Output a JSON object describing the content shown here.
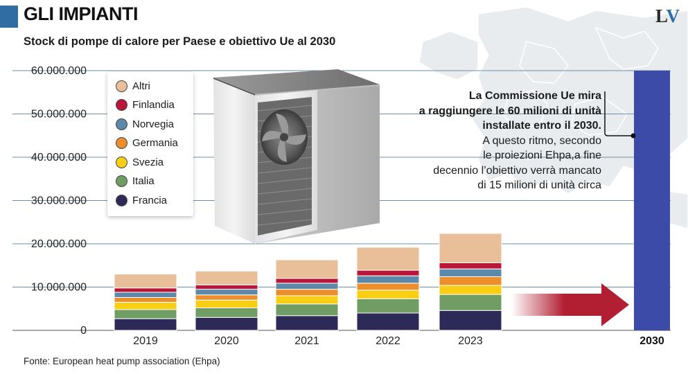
{
  "header": {
    "title": "GLI IMPIANTI",
    "subtitle": "Stock di pompe di calore per Paese e obiettivo Ue al 2030",
    "logo": "LV",
    "accent_color": "#2f6da3",
    "logo_colors": {
      "l": "#2b2b2b",
      "v": "#2f6da3"
    }
  },
  "source": "Fonte: European heat pump association (Ehpa)",
  "annotation": {
    "bold_lines": [
      "La Commissione Ue mira",
      "a raggiungere le 60 milioni di unità",
      "installate entro il 2030."
    ],
    "normal_lines": [
      "A questo ritmo, secondo",
      "le proiezioni Ehpa,a fine",
      "decennio l’obiettivo verrà mancato",
      "di 15 milioni di unità circa"
    ]
  },
  "illustration": {
    "icon": "heat-pump-unit-icon"
  },
  "chart_data": {
    "type": "bar",
    "stacked": true,
    "title": "Stock di pompe di calore per Paese e obiettivo Ue al 2030",
    "categories": [
      "2019",
      "2020",
      "2021",
      "2022",
      "2023"
    ],
    "series": [
      {
        "name": "Francia",
        "color": "#2d2a57",
        "values": [
          2700000,
          3000000,
          3400000,
          4000000,
          4600000
        ]
      },
      {
        "name": "Italia",
        "color": "#6f9d63",
        "values": [
          2100000,
          2200000,
          2700000,
          3300000,
          3700000
        ]
      },
      {
        "name": "Svezia",
        "color": "#f8cf14",
        "values": [
          1700000,
          1800000,
          1900000,
          2000000,
          2100000
        ]
      },
      {
        "name": "Germania",
        "color": "#ec8e2c",
        "values": [
          1100000,
          1200000,
          1500000,
          1600000,
          2000000
        ]
      },
      {
        "name": "Norvegia",
        "color": "#5c88a9",
        "values": [
          1200000,
          1300000,
          1400000,
          1700000,
          1800000
        ]
      },
      {
        "name": "Finlandia",
        "color": "#b8173a",
        "values": [
          1000000,
          1000000,
          1100000,
          1300000,
          1400000
        ]
      },
      {
        "name": "Altri",
        "color": "#e8bf98",
        "values": [
          3200000,
          3200000,
          4300000,
          5300000,
          6800000
        ]
      }
    ],
    "target": {
      "category": "2030",
      "value": 60000000,
      "color": "#3d4ba8"
    },
    "yticks": [
      "0",
      "10.000.000",
      "20.000.000",
      "30.000.000",
      "40.000.000",
      "50.000.000",
      "60.000.000"
    ],
    "ylim": [
      0,
      60000000
    ],
    "grid": true,
    "grid_color": "#6e8fa8",
    "arrow_color": "#b21f33",
    "legend_order": [
      "Altri",
      "Finlandia",
      "Norvegia",
      "Germania",
      "Svezia",
      "Italia",
      "Francia"
    ],
    "legend_position": "top-left"
  }
}
